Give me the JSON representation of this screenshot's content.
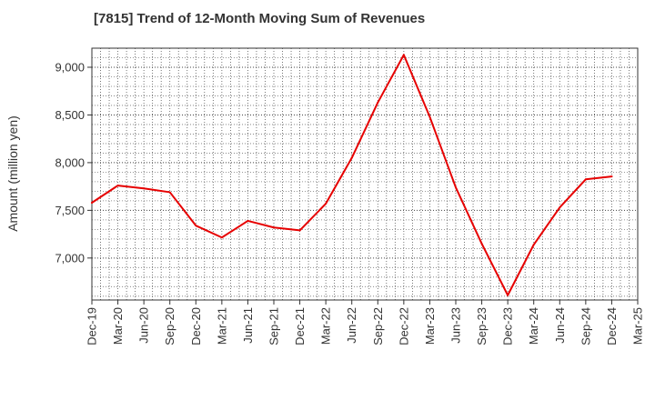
{
  "title": "[7815]  Trend of 12-Month Moving Sum of Revenues",
  "chart_data": {
    "type": "line",
    "title": "[7815]  Trend of 12-Month Moving Sum of Revenues",
    "ylabel": "Amount (million yen)",
    "xlabel": "",
    "categories": [
      "Dec-19",
      "Mar-20",
      "Jun-20",
      "Sep-20",
      "Dec-20",
      "Mar-21",
      "Jun-21",
      "Sep-21",
      "Dec-21",
      "Mar-22",
      "Jun-22",
      "Sep-22",
      "Dec-22",
      "Mar-23",
      "Jun-23",
      "Sep-23",
      "Dec-23",
      "Mar-24",
      "Jun-24",
      "Sep-24",
      "Dec-24",
      "Mar-25"
    ],
    "series": [
      {
        "color": "#e60000",
        "values": [
          7580,
          7760,
          7730,
          7690,
          7340,
          7215,
          7390,
          7320,
          7290,
          7570,
          8050,
          8630,
          9130,
          8480,
          7740,
          7150,
          6610,
          7140,
          7530,
          7825,
          7855,
          null
        ]
      }
    ],
    "yticks": [
      7000,
      7500,
      8000,
      8500,
      9000
    ],
    "ytick_labels": [
      "7,000",
      "7,500",
      "8,000",
      "8,500",
      "9,000"
    ],
    "ylim": [
      6560,
      9200
    ],
    "grid": true,
    "grid_style": "dotted",
    "legend": "none"
  }
}
